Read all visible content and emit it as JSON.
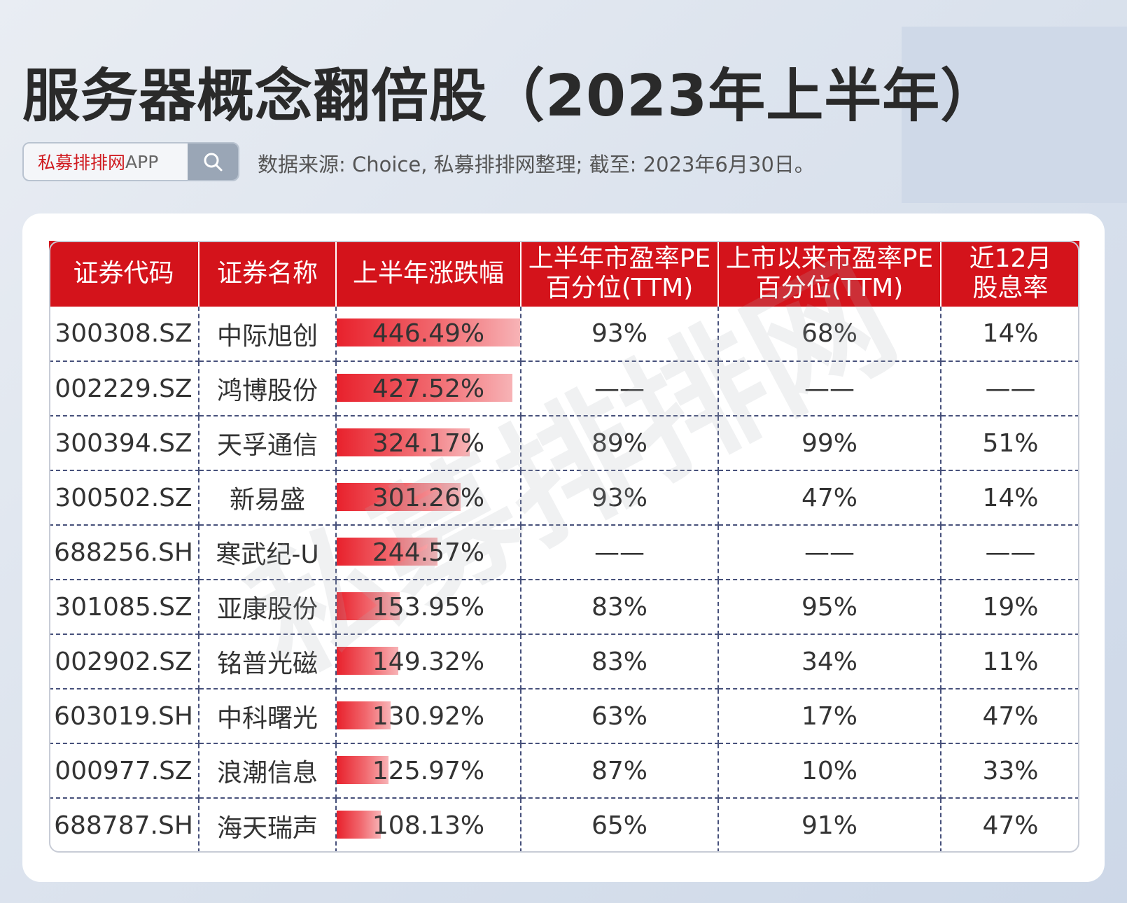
{
  "title": "服务器概念翻倍股（2023年上半年）",
  "search": {
    "brand": "私募排排网",
    "app": "APP"
  },
  "source": "数据来源: Choice, 私募排排网整理; 截至: 2023年6月30日。",
  "watermark": "私募排排网",
  "colors": {
    "header_bg": "#d4131b",
    "bar": "#e8212c"
  },
  "headers": {
    "code": "证券代码",
    "name": "证券名称",
    "change": "上半年涨跌幅",
    "pe_h1_line1": "上半年市盈率PE",
    "pe_h1_line2": "百分位(TTM)",
    "pe_all_line1": "上市以来市盈率PE",
    "pe_all_line2": "百分位(TTM)",
    "div_line1": "近12月",
    "div_line2": "股息率"
  },
  "chart_data": {
    "type": "table",
    "columns": [
      "证券代码",
      "证券名称",
      "上半年涨跌幅",
      "上半年市盈率PE百分位(TTM)",
      "上市以来市盈率PE百分位(TTM)",
      "近12月股息率"
    ],
    "bar_max": 446.49,
    "rows": [
      {
        "code": "300308.SZ",
        "name": "中际旭创",
        "change": 446.49,
        "change_label": "446.49%",
        "pe_h1": "93%",
        "pe_all": "68%",
        "div": "14%"
      },
      {
        "code": "002229.SZ",
        "name": "鸿博股份",
        "change": 427.52,
        "change_label": "427.52%",
        "pe_h1": "——",
        "pe_all": "——",
        "div": "——"
      },
      {
        "code": "300394.SZ",
        "name": "天孚通信",
        "change": 324.17,
        "change_label": "324.17%",
        "pe_h1": "89%",
        "pe_all": "99%",
        "div": "51%"
      },
      {
        "code": "300502.SZ",
        "name": "新易盛",
        "change": 301.26,
        "change_label": "301.26%",
        "pe_h1": "93%",
        "pe_all": "47%",
        "div": "14%"
      },
      {
        "code": "688256.SH",
        "name": "寒武纪-U",
        "change": 244.57,
        "change_label": "244.57%",
        "pe_h1": "——",
        "pe_all": "——",
        "div": "——"
      },
      {
        "code": "301085.SZ",
        "name": "亚康股份",
        "change": 153.95,
        "change_label": "153.95%",
        "pe_h1": "83%",
        "pe_all": "95%",
        "div": "19%"
      },
      {
        "code": "002902.SZ",
        "name": "铭普光磁",
        "change": 149.32,
        "change_label": "149.32%",
        "pe_h1": "83%",
        "pe_all": "34%",
        "div": "11%"
      },
      {
        "code": "603019.SH",
        "name": "中科曙光",
        "change": 130.92,
        "change_label": "130.92%",
        "pe_h1": "63%",
        "pe_all": "17%",
        "div": "47%"
      },
      {
        "code": "000977.SZ",
        "name": "浪潮信息",
        "change": 125.97,
        "change_label": "125.97%",
        "pe_h1": "87%",
        "pe_all": "10%",
        "div": "33%"
      },
      {
        "code": "688787.SH",
        "name": "海天瑞声",
        "change": 108.13,
        "change_label": "108.13%",
        "pe_h1": "65%",
        "pe_all": "91%",
        "div": "47%"
      }
    ]
  }
}
